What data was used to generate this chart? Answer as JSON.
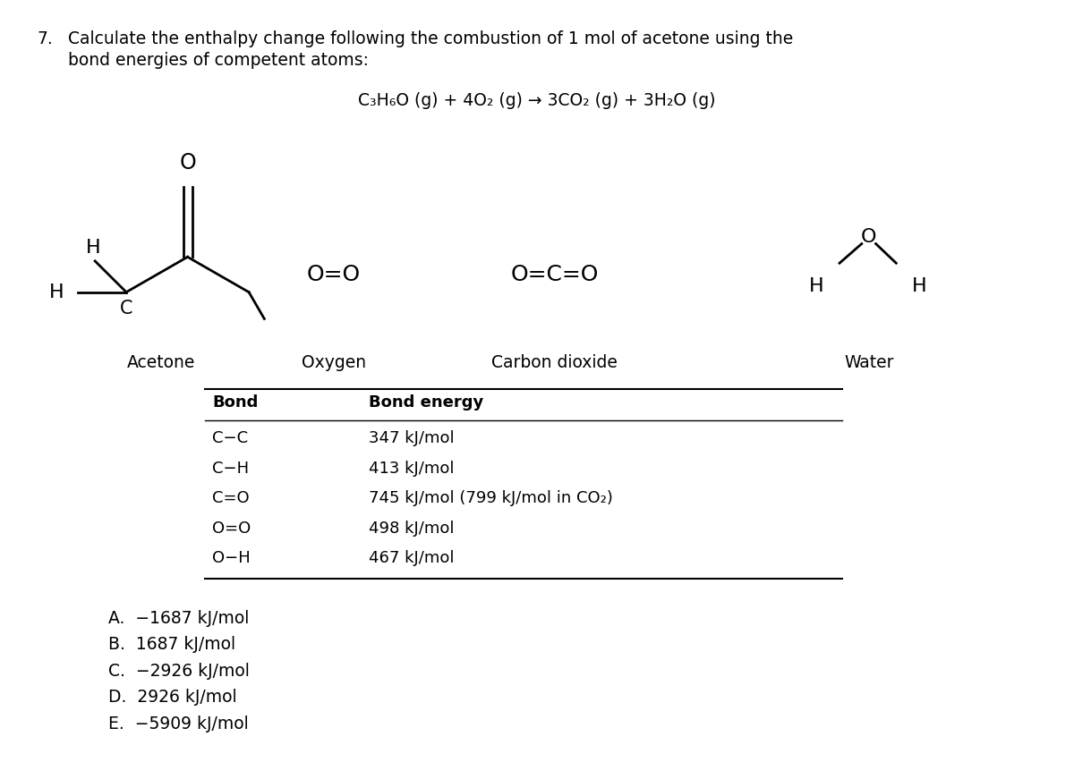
{
  "title_number": "7.",
  "title_text1": "Calculate the enthalpy change following the combustion of 1 mol of acetone using the",
  "title_text2": "bond energies of competent atoms:",
  "equation": "C₃H₆O (g) + 4O₂ (g) → 3CO₂ (g) + 3H₂O (g)",
  "molecule_labels": [
    "Acetone",
    "Oxygen",
    "Carbon dioxide",
    "Water"
  ],
  "table_header": [
    "Bond",
    "Bond energy"
  ],
  "table_rows": [
    [
      "C−C",
      "347 kJ/mol"
    ],
    [
      "C−H",
      "413 kJ/mol"
    ],
    [
      "C=O",
      "745 kJ/mol (799 kJ/mol in CO₂)"
    ],
    [
      "O=O",
      "498 kJ/mol"
    ],
    [
      "O−H",
      "467 kJ/mol"
    ]
  ],
  "choices": [
    "A.  −1687 kJ/mol",
    "B.  1687 kJ/mol",
    "C.  −2926 kJ/mol",
    "D.  2926 kJ/mol",
    "E.  −5909 kJ/mol"
  ],
  "bg_color": "#ffffff",
  "text_color": "#000000",
  "font_size_title": 13.5,
  "font_size_eq": 13.5,
  "font_size_table": 13.0,
  "font_size_choices": 13.5,
  "font_size_labels": 13.5,
  "font_size_mol": 17
}
